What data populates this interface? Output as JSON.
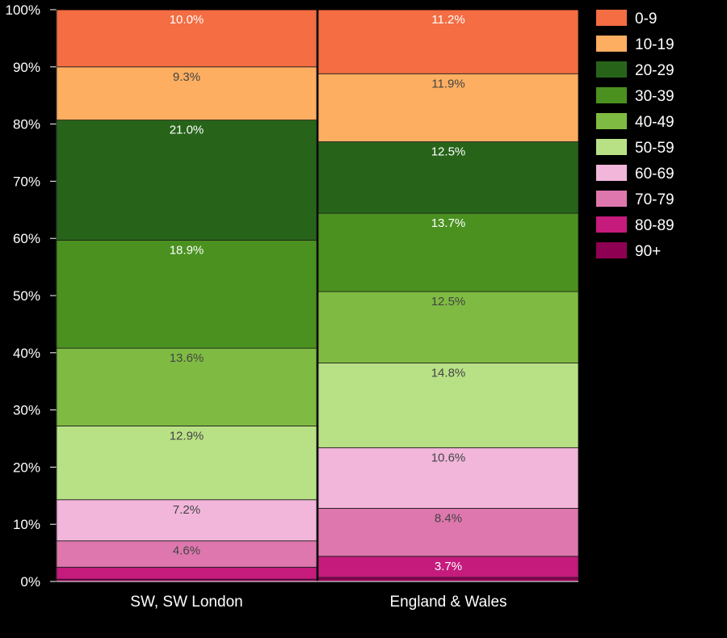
{
  "chart_data": {
    "type": "bar",
    "stacked": true,
    "categories": [
      "SW, SW London",
      "England & Wales"
    ],
    "series": [
      {
        "name": "0-9",
        "color": "#f46d43",
        "values": [
          10.0,
          11.2
        ],
        "labels": [
          "10.0%",
          "11.2%"
        ]
      },
      {
        "name": "10-19",
        "color": "#fdae61",
        "values": [
          9.3,
          11.9
        ],
        "labels": [
          "9.3%",
          "11.9%"
        ]
      },
      {
        "name": "20-29",
        "color": "#27641a",
        "values": [
          21.0,
          12.5
        ],
        "labels": [
          "21.0%",
          "12.5%"
        ]
      },
      {
        "name": "30-39",
        "color": "#4a9120",
        "values": [
          18.9,
          13.7
        ],
        "labels": [
          "18.9%",
          "13.7%"
        ]
      },
      {
        "name": "40-49",
        "color": "#7fbb42",
        "values": [
          13.6,
          12.5
        ],
        "labels": [
          "13.6%",
          "12.5%"
        ]
      },
      {
        "name": "50-59",
        "color": "#b8e186",
        "values": [
          12.9,
          14.8
        ],
        "labels": [
          "12.9%",
          "14.8%"
        ]
      },
      {
        "name": "60-69",
        "color": "#f1b6da",
        "values": [
          7.2,
          10.6
        ],
        "labels": [
          "7.2%",
          "10.6%"
        ]
      },
      {
        "name": "70-79",
        "color": "#de77ae",
        "values": [
          4.6,
          8.4
        ],
        "labels": [
          "4.6%",
          "8.4%"
        ]
      },
      {
        "name": "80-89",
        "color": "#c51b7d",
        "values": [
          2.1,
          3.7
        ],
        "labels": [
          "",
          "3.7%"
        ]
      },
      {
        "name": "90+",
        "color": "#8e0152",
        "values": [
          0.4,
          0.7
        ],
        "labels": [
          "",
          ""
        ]
      }
    ],
    "y_ticks": [
      "0%",
      "10%",
      "20%",
      "30%",
      "40%",
      "50%",
      "60%",
      "70%",
      "80%",
      "90%",
      "100%"
    ],
    "ylim": [
      0,
      100
    ],
    "legend": "right",
    "grid": false
  }
}
